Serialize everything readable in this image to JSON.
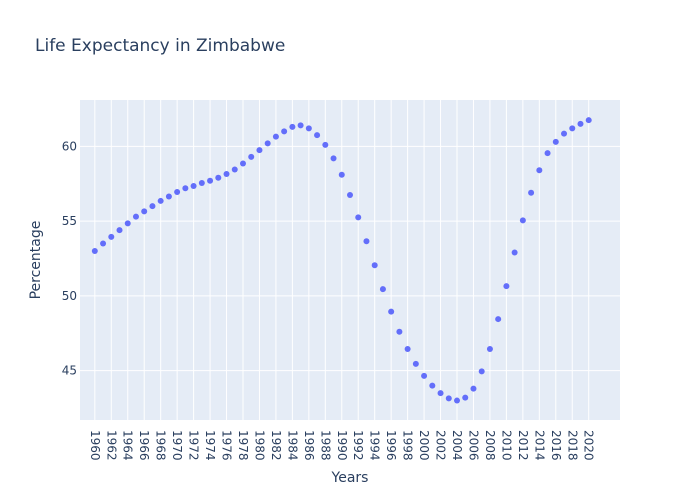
{
  "chart_data": {
    "type": "scatter",
    "title": "Life Expectancy in Zimbabwe",
    "xlabel": "Years",
    "ylabel": "Percentage",
    "xlim": [
      1958.2,
      2023.8
    ],
    "ylim": [
      41.7,
      63.1
    ],
    "grid": true,
    "legend": "none",
    "colors": {
      "marker": "#636efa",
      "plot_bg": "#e5ecf6",
      "grid": "#ffffff",
      "text": "#2a3f5f"
    },
    "x_ticks": [
      1960,
      1962,
      1964,
      1966,
      1968,
      1970,
      1972,
      1974,
      1976,
      1978,
      1980,
      1982,
      1984,
      1986,
      1988,
      1990,
      1992,
      1994,
      1996,
      1998,
      2000,
      2002,
      2004,
      2006,
      2008,
      2010,
      2012,
      2014,
      2016,
      2018,
      2020
    ],
    "y_ticks": [
      45,
      50,
      55,
      60
    ],
    "x": [
      1960,
      1961,
      1962,
      1963,
      1964,
      1965,
      1966,
      1967,
      1968,
      1969,
      1970,
      1971,
      1972,
      1973,
      1974,
      1975,
      1976,
      1977,
      1978,
      1979,
      1980,
      1981,
      1982,
      1983,
      1984,
      1985,
      1986,
      1987,
      1988,
      1989,
      1990,
      1991,
      1992,
      1993,
      1994,
      1995,
      1996,
      1997,
      1998,
      1999,
      2000,
      2001,
      2002,
      2003,
      2004,
      2005,
      2006,
      2007,
      2008,
      2009,
      2010,
      2011,
      2012,
      2013,
      2014,
      2015,
      2016,
      2017,
      2018,
      2019,
      2020
    ],
    "y": [
      53.0,
      53.5,
      53.95,
      54.4,
      54.85,
      55.3,
      55.65,
      56.0,
      56.35,
      56.65,
      56.95,
      57.2,
      57.35,
      57.55,
      57.7,
      57.9,
      58.15,
      58.45,
      58.85,
      59.3,
      59.75,
      60.2,
      60.65,
      61.0,
      61.3,
      61.4,
      61.2,
      60.75,
      60.1,
      59.2,
      58.1,
      56.75,
      55.25,
      53.65,
      52.05,
      50.45,
      48.95,
      47.6,
      46.45,
      45.45,
      44.65,
      44.0,
      43.5,
      43.15,
      43.0,
      43.2,
      43.8,
      44.95,
      46.45,
      48.45,
      50.65,
      52.9,
      55.05,
      56.9,
      58.4,
      59.55,
      60.3,
      60.85,
      61.2,
      61.5,
      61.75
    ]
  }
}
